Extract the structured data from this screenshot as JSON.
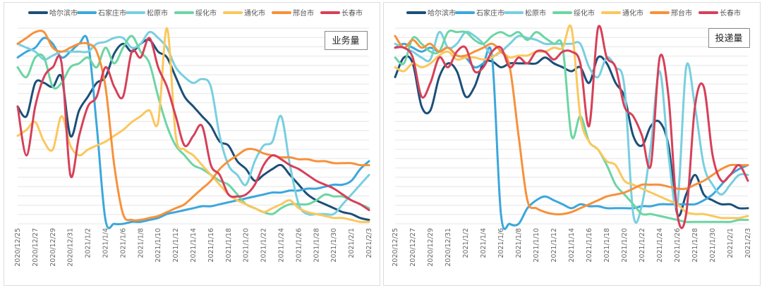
{
  "chart_data": [
    {
      "type": "line",
      "title": "业务量",
      "x": [
        "2020/12/25",
        "2020/12/26",
        "2020/12/27",
        "2020/12/28",
        "2020/12/29",
        "2020/12/30",
        "2020/12/31",
        "2021/1/1",
        "2021/1/2",
        "2021/1/3",
        "2021/1/4",
        "2021/1/5",
        "2021/1/6",
        "2021/1/7",
        "2021/1/8",
        "2021/1/9",
        "2021/1/10",
        "2021/1/11",
        "2021/1/12",
        "2021/1/13",
        "2021/1/14",
        "2021/1/15",
        "2021/1/16",
        "2021/1/17",
        "2021/1/18",
        "2021/1/19",
        "2021/1/20",
        "2021/1/21",
        "2021/1/22",
        "2021/1/23",
        "2021/1/24",
        "2021/1/25",
        "2021/1/26",
        "2021/1/27",
        "2021/1/28",
        "2021/1/29",
        "2021/1/30",
        "2021/1/31",
        "2021/2/1",
        "2021/2/2",
        "2021/2/3"
      ],
      "tick_labels": [
        "2020/12/25",
        "2020/12/27",
        "2020/12/29",
        "2020/12/31",
        "2021/1/2",
        "2021/1/4",
        "2021/1/6",
        "2021/1/8",
        "2021/1/10",
        "2021/1/12",
        "2021/1/14",
        "2021/1/16",
        "2021/1/18",
        "2021/1/20",
        "2021/1/22",
        "2021/1/24",
        "2021/1/26",
        "2021/1/28",
        "2021/1/30",
        "2021/2/1",
        "2021/2/3"
      ],
      "ylim": [
        0,
        100
      ],
      "series": [
        {
          "name": "哈尔滨市",
          "color": "#1b4f78",
          "values": [
            60,
            55,
            72,
            72,
            70,
            75,
            45,
            58,
            65,
            72,
            75,
            87,
            92,
            88,
            92,
            94,
            88,
            85,
            75,
            65,
            60,
            55,
            50,
            42,
            40,
            32,
            28,
            22,
            25,
            28,
            30,
            25,
            20,
            15,
            12,
            10,
            8,
            6,
            5,
            3,
            2
          ]
        },
        {
          "name": "石家庄市",
          "color": "#3ca7db",
          "values": [
            85,
            88,
            90,
            95,
            92,
            85,
            88,
            92,
            93,
            50,
            2,
            0,
            0,
            1,
            1,
            2,
            3,
            5,
            6,
            7,
            8,
            9,
            9,
            10,
            11,
            12,
            13,
            14,
            15,
            16,
            16,
            17,
            17,
            18,
            18,
            19,
            20,
            20,
            22,
            28,
            32
          ]
        },
        {
          "name": "松原市",
          "color": "#78cfe0",
          "values": [
            92,
            90,
            88,
            84,
            86,
            88,
            88,
            88,
            88,
            92,
            93,
            95,
            95,
            90,
            92,
            98,
            95,
            90,
            80,
            75,
            72,
            74,
            70,
            45,
            30,
            25,
            20,
            32,
            40,
            42,
            55,
            30,
            10,
            5,
            5,
            5,
            5,
            10,
            15,
            20,
            25
          ]
        },
        {
          "name": "绥化市",
          "color": "#6cd5a3",
          "values": [
            80,
            75,
            85,
            85,
            70,
            72,
            80,
            82,
            85,
            80,
            90,
            82,
            90,
            96,
            88,
            82,
            65,
            50,
            40,
            35,
            30,
            28,
            25,
            22,
            20,
            15,
            10,
            8,
            6,
            5,
            8,
            10,
            10,
            10,
            12,
            15,
            14,
            14,
            12,
            10,
            8
          ]
        },
        {
          "name": "通化市",
          "color": "#fbc75e",
          "values": [
            45,
            48,
            52,
            42,
            38,
            55,
            40,
            35,
            38,
            40,
            42,
            45,
            48,
            52,
            55,
            58,
            52,
            100,
            45,
            38,
            35,
            30,
            25,
            20,
            15,
            12,
            10,
            8,
            6,
            8,
            10,
            12,
            8,
            6,
            5,
            4,
            3,
            3,
            2,
            1,
            1
          ]
        },
        {
          "name": "邢台市",
          "color": "#f7913a",
          "values": [
            92,
            95,
            98,
            98,
            90,
            88,
            90,
            92,
            92,
            88,
            70,
            30,
            5,
            2,
            2,
            3,
            4,
            6,
            8,
            10,
            14,
            18,
            22,
            28,
            32,
            35,
            38,
            38,
            36,
            35,
            34,
            34,
            33,
            33,
            32,
            32,
            31,
            31,
            31,
            30,
            30
          ]
        },
        {
          "name": "长春市",
          "color": "#d64059",
          "values": [
            60,
            35,
            60,
            75,
            80,
            82,
            25,
            45,
            60,
            65,
            80,
            70,
            65,
            88,
            85,
            95,
            80,
            70,
            55,
            40,
            45,
            50,
            30,
            25,
            15,
            14,
            15,
            20,
            30,
            35,
            33,
            30,
            28,
            25,
            22,
            20,
            18,
            15,
            12,
            10,
            7
          ]
        }
      ]
    },
    {
      "type": "line",
      "title": "投递量",
      "x": [
        "2020/12/25",
        "2020/12/26",
        "2020/12/27",
        "2020/12/28",
        "2020/12/29",
        "2020/12/30",
        "2020/12/31",
        "2021/1/1",
        "2021/1/2",
        "2021/1/3",
        "2021/1/4",
        "2021/1/5",
        "2021/1/6",
        "2021/1/7",
        "2021/1/8",
        "2021/1/9",
        "2021/1/10",
        "2021/1/11",
        "2021/1/12",
        "2021/1/13",
        "2021/1/14",
        "2021/1/15",
        "2021/1/16",
        "2021/1/17",
        "2021/1/18",
        "2021/1/19",
        "2021/1/20",
        "2021/1/21",
        "2021/1/22",
        "2021/1/23",
        "2021/1/24",
        "2021/1/25",
        "2021/1/26",
        "2021/1/27",
        "2021/1/28",
        "2021/1/29",
        "2021/1/30",
        "2021/1/31",
        "2021/2/1",
        "2021/2/2",
        "2021/2/3"
      ],
      "tick_labels": [
        "2020/12/25",
        "2020/12/27",
        "2020/12/29",
        "2020/12/31",
        "2021/1/2",
        "2021/1/4",
        "2021/1/6",
        "2021/1/8",
        "2021/1/10",
        "2021/1/12",
        "2021/1/14",
        "2021/1/16",
        "2021/1/18",
        "2021/1/20",
        "2021/1/22",
        "2021/1/24",
        "2021/1/26",
        "2021/1/28",
        "2021/1/30",
        "2021/2/1",
        "2021/2/3"
      ],
      "ylim": [
        0,
        100
      ],
      "series": [
        {
          "name": "哈尔滨市",
          "color": "#1b4f78",
          "values": [
            75,
            85,
            82,
            60,
            58,
            75,
            82,
            78,
            65,
            70,
            82,
            83,
            80,
            82,
            82,
            82,
            82,
            85,
            82,
            80,
            78,
            80,
            72,
            85,
            82,
            72,
            65,
            45,
            40,
            50,
            52,
            40,
            5,
            15,
            25,
            15,
            12,
            10,
            10,
            8,
            8
          ]
        },
        {
          "name": "石家庄市",
          "color": "#3ca7db",
          "values": [
            90,
            92,
            90,
            88,
            90,
            88,
            90,
            86,
            85,
            80,
            82,
            85,
            5,
            0,
            0,
            8,
            12,
            14,
            12,
            10,
            8,
            10,
            9,
            9,
            8,
            8,
            8,
            8,
            9,
            9,
            10,
            10,
            10,
            10,
            10,
            12,
            15,
            20,
            25,
            28,
            30
          ]
        },
        {
          "name": "松原市",
          "color": "#78cfe0",
          "values": [
            92,
            90,
            88,
            85,
            84,
            98,
            90,
            92,
            98,
            96,
            92,
            86,
            88,
            92,
            96,
            95,
            94,
            92,
            92,
            92,
            92,
            92,
            80,
            75,
            85,
            80,
            70,
            5,
            10,
            40,
            78,
            35,
            10,
            80,
            60,
            30,
            20,
            15,
            20,
            25,
            25
          ]
        },
        {
          "name": "绥化市",
          "color": "#6cd5a3",
          "values": [
            85,
            82,
            95,
            92,
            88,
            88,
            98,
            98,
            98,
            94,
            92,
            96,
            98,
            96,
            98,
            94,
            98,
            95,
            92,
            90,
            45,
            55,
            42,
            38,
            30,
            20,
            15,
            10,
            5,
            5,
            4,
            3,
            2,
            1,
            1,
            1,
            1,
            1,
            1,
            2,
            2
          ]
        },
        {
          "name": "通化市",
          "color": "#fbc75e",
          "values": [
            80,
            78,
            82,
            80,
            82,
            86,
            88,
            84,
            85,
            85,
            84,
            85,
            88,
            85,
            86,
            86,
            88,
            88,
            90,
            90,
            100,
            55,
            42,
            38,
            32,
            30,
            22,
            20,
            18,
            16,
            14,
            12,
            10,
            6,
            5,
            5,
            4,
            3,
            3,
            3,
            4
          ]
        },
        {
          "name": "邢台市",
          "color": "#f7913a",
          "values": [
            96,
            90,
            94,
            90,
            92,
            88,
            90,
            86,
            86,
            88,
            90,
            92,
            88,
            80,
            45,
            12,
            8,
            6,
            5,
            5,
            6,
            8,
            10,
            12,
            14,
            15,
            16,
            18,
            20,
            20,
            20,
            19,
            18,
            18,
            20,
            22,
            25,
            28,
            30,
            30,
            30
          ]
        },
        {
          "name": "长春市",
          "color": "#d64059",
          "values": [
            90,
            90,
            85,
            65,
            72,
            85,
            80,
            88,
            90,
            78,
            80,
            88,
            90,
            80,
            85,
            82,
            88,
            88,
            84,
            88,
            88,
            82,
            50,
            100,
            85,
            80,
            60,
            55,
            45,
            30,
            85,
            65,
            5,
            5,
            60,
            70,
            35,
            22,
            25,
            30,
            22
          ]
        }
      ]
    }
  ]
}
